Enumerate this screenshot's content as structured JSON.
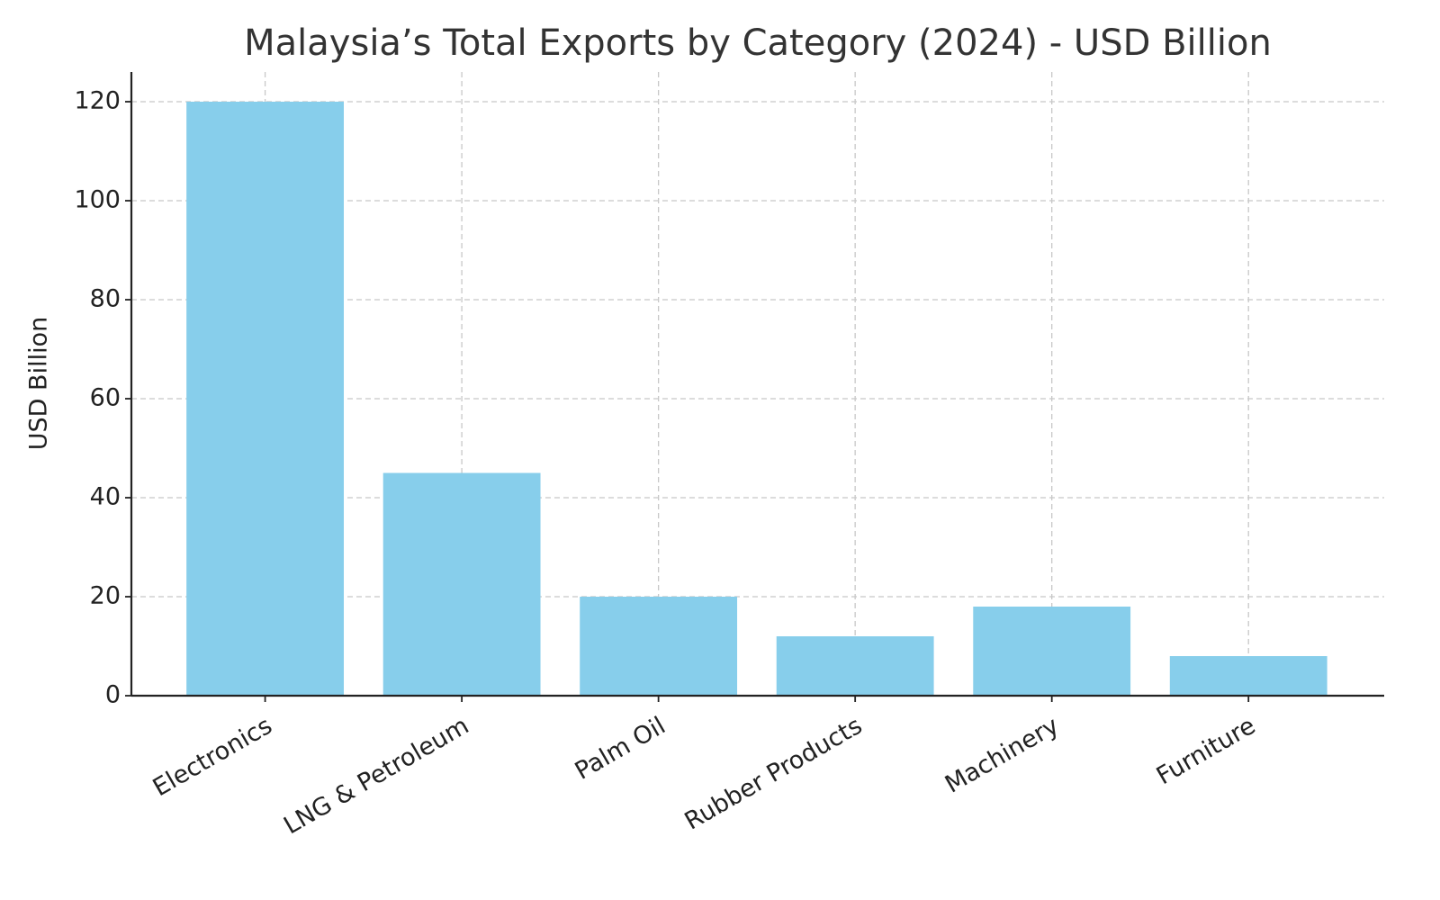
{
  "chart_data": {
    "type": "bar",
    "title": "Malaysia’s Total Exports by Category (2024) - USD Billion",
    "y_label": "USD Billion",
    "categories": [
      "Electronics",
      "LNG & Petroleum",
      "Palm Oil",
      "Rubber Products",
      "Machinery",
      "Furniture"
    ],
    "values": [
      120,
      45,
      20,
      12,
      18,
      8
    ],
    "color": "#87ceeb",
    "ylim": [
      0,
      126
    ],
    "yticks": [
      0,
      20,
      40,
      60,
      80,
      100,
      120
    ],
    "grid": true
  }
}
